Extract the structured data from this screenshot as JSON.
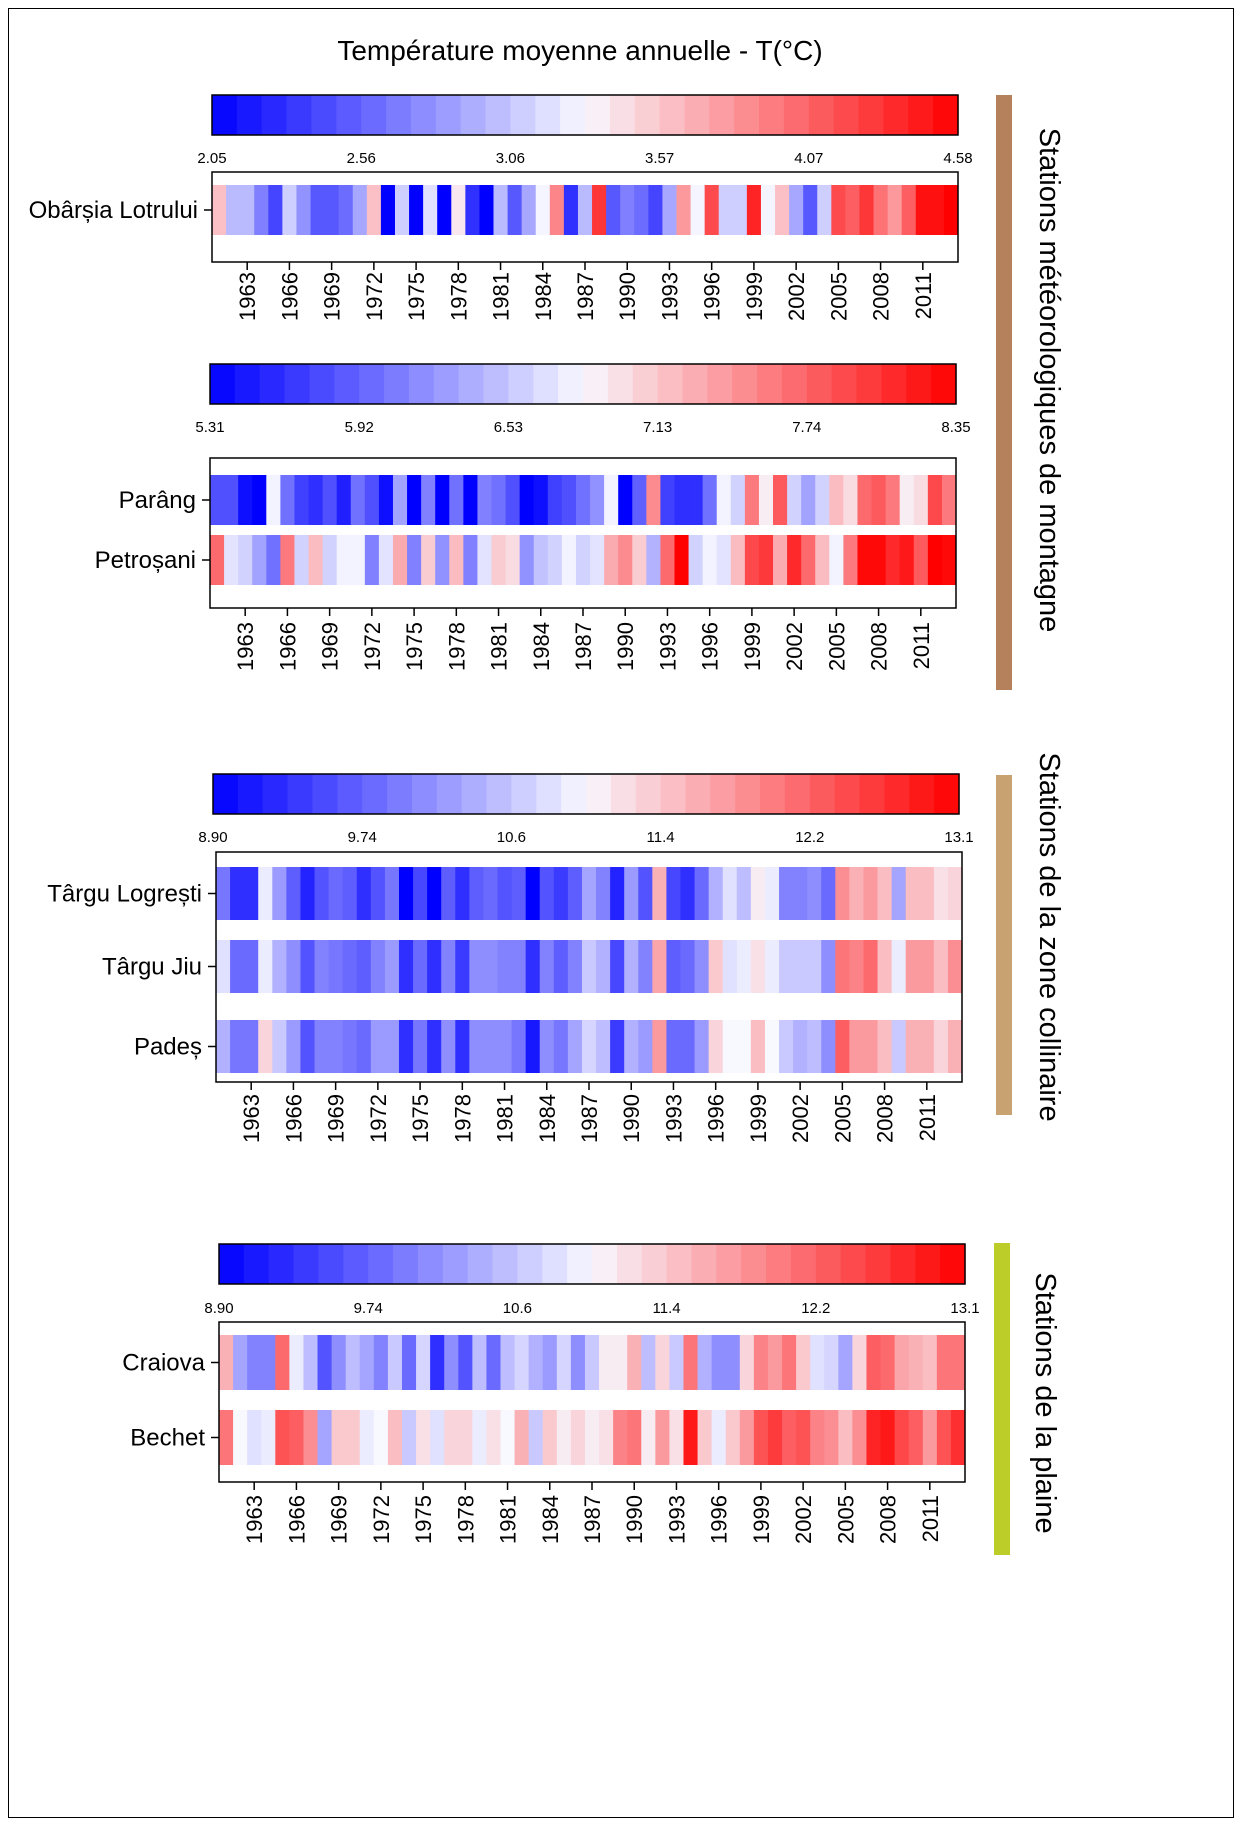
{
  "title": "Température moyenne annuelle - T(°C)",
  "colors": {
    "low": "#0000ff",
    "mid": "#f8f8ff",
    "high": "#ff0000",
    "group_mountain": "#b5815d",
    "group_hill": "#c9a271",
    "group_plain": "#bccd2a"
  },
  "year_labels": [
    "1963",
    "1966",
    "1969",
    "1972",
    "1975",
    "1978",
    "1981",
    "1984",
    "1987",
    "1990",
    "1993",
    "1996",
    "1999",
    "2002",
    "2005",
    "2008",
    "2011"
  ],
  "groups": [
    {
      "label": "Stations météorologiques de montagne"
    },
    {
      "label": "Stations de la zone collinaire"
    },
    {
      "label": "Stations de la plaine"
    }
  ],
  "chart_data": [
    {
      "type": "heatmap",
      "title": "Température moyenne annuelle - T(°C)",
      "group": "Stations météorologiques de montagne",
      "x_start_year": 1961,
      "x_end_year": 2013,
      "color_scale": {
        "min": 2.05,
        "max": 4.58,
        "ticks": [
          "2.05",
          "2.56",
          "3.06",
          "3.57",
          "4.07",
          "4.58"
        ]
      },
      "rows": [
        {
          "name": "Obârșia Lotrului",
          "values": [
            3.6,
            3.0,
            3.0,
            2.7,
            2.4,
            3.1,
            2.8,
            2.5,
            2.5,
            2.6,
            2.9,
            3.6,
            2.05,
            3.1,
            2.05,
            3.2,
            2.05,
            3.4,
            2.3,
            2.05,
            3.0,
            2.5,
            2.9,
            3.3,
            3.9,
            2.3,
            3.0,
            4.3,
            2.5,
            2.7,
            2.6,
            2.4,
            2.9,
            3.8,
            3.3,
            4.2,
            3.1,
            3.1,
            4.4,
            3.3,
            3.6,
            2.9,
            2.5,
            3.1,
            4.2,
            4.1,
            4.3,
            4.0,
            3.8,
            4.1,
            4.5,
            4.5,
            4.58
          ]
        }
      ]
    },
    {
      "type": "heatmap",
      "group": "Stations météorologiques de montagne",
      "x_start_year": 1961,
      "x_end_year": 2013,
      "color_scale": {
        "min": 5.31,
        "max": 8.35,
        "ticks": [
          "5.31",
          "5.92",
          "6.53",
          "7.13",
          "7.74",
          "8.35"
        ]
      },
      "rows": [
        {
          "name": "Parâng",
          "values": [
            5.8,
            5.8,
            5.4,
            5.31,
            6.8,
            6.0,
            5.7,
            5.6,
            5.8,
            5.5,
            6.0,
            5.8,
            5.4,
            6.3,
            5.31,
            6.1,
            5.31,
            6.0,
            5.31,
            6.1,
            6.0,
            5.8,
            5.31,
            5.4,
            5.7,
            5.8,
            6.0,
            6.2,
            6.8,
            5.31,
            5.9,
            7.5,
            5.7,
            5.6,
            5.6,
            6.0,
            6.8,
            6.6,
            7.6,
            6.9,
            7.8,
            6.6,
            6.3,
            6.6,
            7.2,
            7.0,
            7.7,
            7.8,
            7.6,
            6.9,
            7.0,
            7.9,
            7.6
          ]
        },
        {
          "name": "Petroșani",
          "values": [
            7.7,
            6.7,
            6.6,
            6.3,
            6.0,
            7.6,
            6.6,
            7.2,
            6.6,
            6.8,
            6.8,
            6.1,
            6.7,
            7.3,
            6.1,
            7.1,
            6.2,
            7.2,
            6.1,
            6.7,
            7.1,
            7.0,
            6.2,
            6.5,
            6.6,
            6.8,
            6.6,
            6.7,
            7.3,
            7.5,
            7.1,
            6.4,
            7.7,
            8.35,
            6.6,
            6.8,
            6.7,
            7.2,
            7.9,
            8.0,
            7.3,
            8.1,
            7.7,
            7.2,
            6.8,
            7.6,
            8.3,
            8.3,
            8.1,
            8.2,
            7.8,
            8.35,
            8.3
          ]
        }
      ]
    },
    {
      "type": "heatmap",
      "group": "Stations de la zone collinaire",
      "x_start_year": 1961,
      "x_end_year": 2013,
      "color_scale": {
        "min": 8.9,
        "max": 13.1,
        "ticks": [
          "8.90",
          "9.74",
          "10.6",
          "11.4",
          "12.2",
          "13.1"
        ]
      },
      "rows": [
        {
          "name": "Târgu Logrești",
          "values": [
            9.9,
            9.3,
            9.3,
            10.9,
            10.2,
            9.7,
            9.2,
            9.6,
            9.8,
            9.7,
            9.3,
            9.6,
            9.9,
            8.9,
            9.5,
            8.9,
            9.7,
            9.3,
            9.7,
            9.8,
            9.6,
            9.7,
            8.9,
            9.6,
            9.4,
            9.7,
            10.3,
            10.0,
            9.2,
            10.2,
            9.6,
            11.6,
            9.5,
            9.3,
            9.8,
            10.4,
            10.8,
            10.5,
            11.1,
            10.9,
            10.0,
            10.0,
            10.1,
            9.8,
            11.9,
            11.6,
            11.8,
            11.5,
            10.3,
            11.5,
            11.5,
            11.2,
            11.3
          ]
        },
        {
          "name": "Târgu Jiu",
          "values": [
            10.8,
            9.8,
            9.8,
            10.9,
            10.4,
            10.1,
            9.6,
            10.0,
            9.9,
            9.8,
            9.7,
            10.0,
            10.2,
            9.3,
            9.8,
            9.3,
            10.0,
            9.4,
            10.1,
            10.1,
            10.0,
            10.0,
            9.3,
            10.0,
            9.7,
            10.0,
            10.6,
            10.4,
            9.5,
            10.4,
            10.0,
            11.7,
            9.7,
            9.8,
            10.1,
            11.4,
            10.8,
            10.9,
            11.2,
            10.9,
            10.6,
            10.6,
            10.6,
            10.1,
            12.1,
            12.0,
            12.2,
            11.5,
            10.9,
            11.8,
            11.8,
            11.5,
            11.9
          ]
        },
        {
          "name": "Padeș",
          "values": [
            10.4,
            9.9,
            9.9,
            11.3,
            10.6,
            10.2,
            9.6,
            10.0,
            10.0,
            9.9,
            9.8,
            10.2,
            10.2,
            9.3,
            9.9,
            9.3,
            10.1,
            9.3,
            10.1,
            10.1,
            10.1,
            9.9,
            9.1,
            10.1,
            9.9,
            10.3,
            10.7,
            10.5,
            9.4,
            10.4,
            10.2,
            11.8,
            9.8,
            9.8,
            10.2,
            11.3,
            11.0,
            11.0,
            11.5,
            11.0,
            10.6,
            10.4,
            10.5,
            10.1,
            12.3,
            11.8,
            11.8,
            11.5,
            10.6,
            11.6,
            11.6,
            11.3,
            11.6
          ]
        }
      ]
    },
    {
      "type": "heatmap",
      "group": "Stations de la plaine",
      "x_start_year": 1961,
      "x_end_year": 2013,
      "color_scale": {
        "min": 8.9,
        "max": 13.1,
        "ticks": [
          "8.90",
          "9.74",
          "10.6",
          "11.4",
          "12.2",
          "13.1"
        ]
      },
      "rows": [
        {
          "name": "Craiova",
          "values": [
            11.6,
            10.3,
            10.0,
            10.0,
            12.2,
            10.9,
            10.5,
            9.6,
            10.1,
            10.5,
            10.3,
            10.0,
            10.6,
            9.8,
            10.7,
            9.3,
            10.1,
            9.6,
            10.5,
            9.8,
            10.5,
            10.7,
            10.4,
            10.2,
            10.7,
            10.1,
            10.6,
            11.1,
            11.1,
            11.6,
            10.5,
            11.3,
            10.6,
            12.1,
            10.4,
            10.1,
            10.1,
            11.3,
            12.0,
            11.8,
            12.1,
            11.4,
            10.8,
            10.7,
            10.3,
            11.3,
            12.3,
            12.2,
            11.7,
            11.6,
            11.5,
            12.1,
            12.1
          ]
        },
        {
          "name": "Bechet",
          "values": [
            12.1,
            11.0,
            10.8,
            10.9,
            12.4,
            12.3,
            11.9,
            10.3,
            11.4,
            11.4,
            10.9,
            11.0,
            11.5,
            10.6,
            11.2,
            10.8,
            11.3,
            11.3,
            10.9,
            11.2,
            11.0,
            11.6,
            10.6,
            11.4,
            11.1,
            11.3,
            11.1,
            11.2,
            12.0,
            12.1,
            11.1,
            11.8,
            11.2,
            12.9,
            11.4,
            10.9,
            11.4,
            11.8,
            12.4,
            12.6,
            12.3,
            12.4,
            12.0,
            11.9,
            11.5,
            11.9,
            12.8,
            12.9,
            12.5,
            12.3,
            11.8,
            12.4,
            12.7
          ]
        }
      ]
    }
  ]
}
